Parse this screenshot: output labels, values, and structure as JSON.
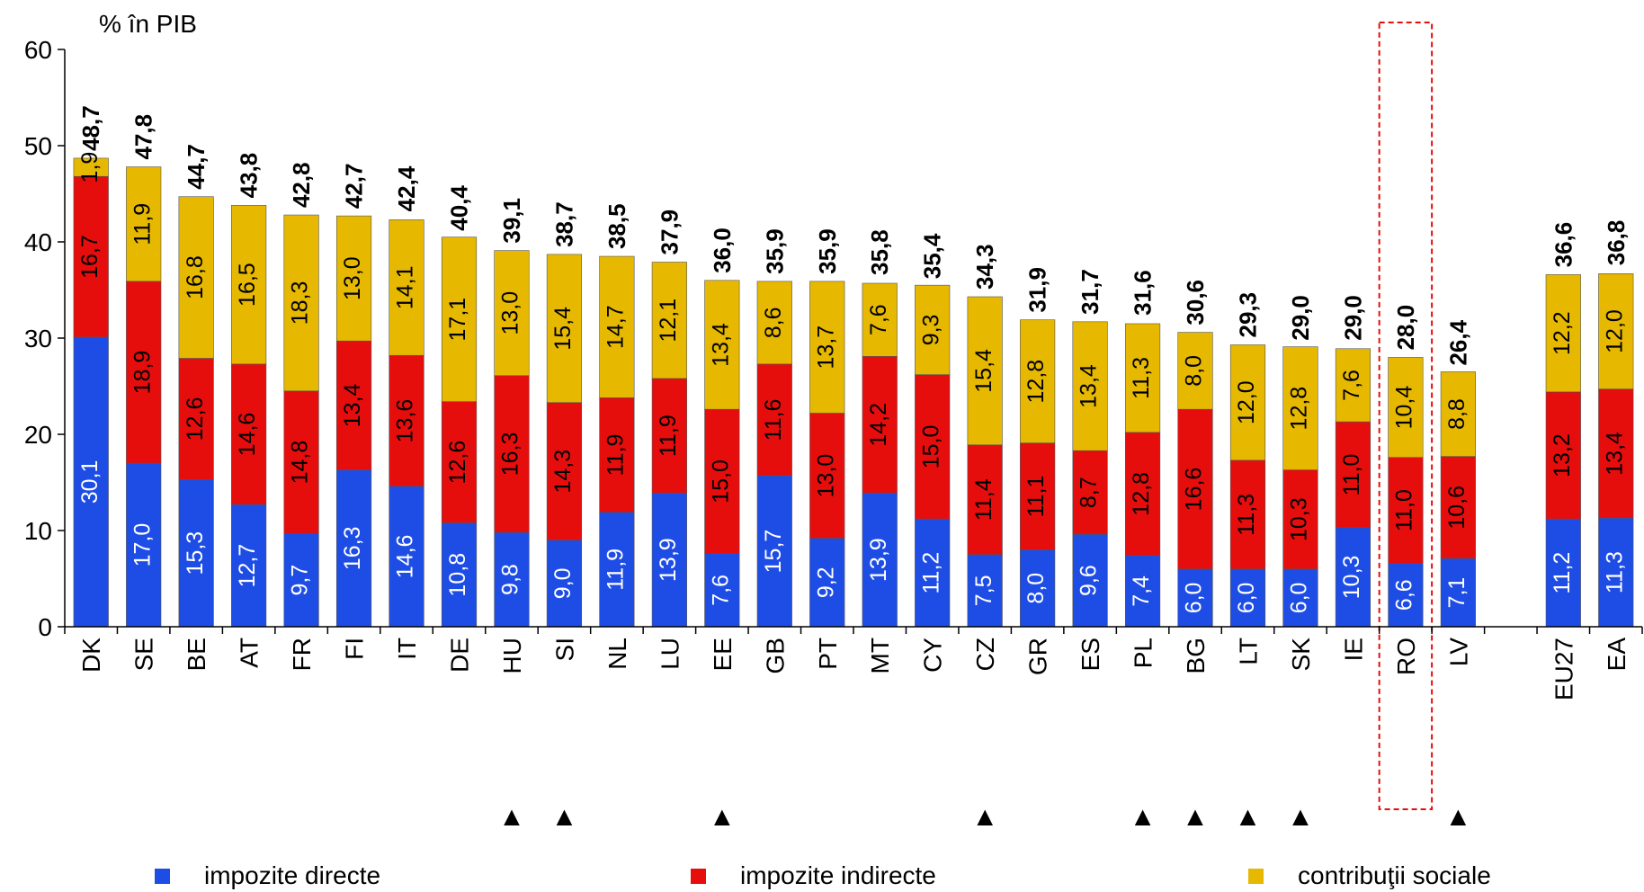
{
  "chart_data": {
    "type": "bar",
    "stacked": true,
    "ylabel": "% în PIB",
    "ylim": [
      0,
      60
    ],
    "yticks": [
      0,
      10,
      20,
      30,
      40,
      50,
      60
    ],
    "grid": false,
    "legend_position": "bottom",
    "categories": [
      "DK",
      "SE",
      "BE",
      "AT",
      "FR",
      "FI",
      "IT",
      "DE",
      "HU",
      "SI",
      "NL",
      "LU",
      "EE",
      "GB",
      "PT",
      "MT",
      "CY",
      "CZ",
      "GR",
      "ES",
      "PL",
      "BG",
      "LT",
      "SK",
      "IE",
      "RO",
      "LV",
      "",
      "EU27",
      "EA"
    ],
    "markers": [
      false,
      false,
      false,
      false,
      false,
      false,
      false,
      false,
      true,
      true,
      false,
      false,
      true,
      false,
      false,
      false,
      false,
      true,
      false,
      false,
      true,
      true,
      true,
      true,
      false,
      false,
      true,
      false,
      false,
      false
    ],
    "marker_symbol": "▲",
    "highlighted_category": "RO",
    "series": [
      {
        "name": "impozite directe",
        "color": "#1e4de6",
        "values": [
          30.1,
          17.0,
          15.3,
          12.7,
          9.7,
          16.3,
          14.6,
          10.8,
          9.8,
          9.0,
          11.9,
          13.9,
          7.6,
          15.7,
          9.2,
          13.9,
          11.2,
          7.5,
          8.0,
          9.6,
          7.4,
          6.0,
          6.0,
          6.0,
          10.3,
          6.6,
          7.1,
          null,
          11.2,
          11.3
        ],
        "labels": [
          "30,1",
          "17,0",
          "15,3",
          "12,7",
          "9,7",
          "16,3",
          "14,6",
          "10,8",
          "9,8",
          "9,0",
          "11,9",
          "13,9",
          "7,6",
          "15,7",
          "9,2",
          "13,9",
          "11,2",
          "7,5",
          "8,0",
          "9,6",
          "7,4",
          "6,0",
          "6,0",
          "6,0",
          "10,3",
          "6,6",
          "7,1",
          "",
          "11,2",
          "11,3"
        ]
      },
      {
        "name": "impozite indirecte",
        "color": "#e60d0d",
        "values": [
          16.7,
          18.9,
          12.6,
          14.6,
          14.8,
          13.4,
          13.6,
          12.6,
          16.3,
          14.3,
          11.9,
          11.9,
          15.0,
          11.6,
          13.0,
          14.2,
          15.0,
          11.4,
          11.1,
          8.7,
          12.8,
          16.6,
          11.3,
          10.3,
          11.0,
          11.0,
          10.6,
          null,
          13.2,
          13.4
        ],
        "labels": [
          "16,7",
          "18,9",
          "12,6",
          "14,6",
          "14,8",
          "13,4",
          "13,6",
          "12,6",
          "16,3",
          "14,3",
          "11,9",
          "11,9",
          "15,0",
          "11,6",
          "13,0",
          "14,2",
          "15,0",
          "11,4",
          "11,1",
          "8,7",
          "12,8",
          "16,6",
          "11,3",
          "10,3",
          "11,0",
          "11,0",
          "10,6",
          "",
          "13,2",
          "13,4"
        ]
      },
      {
        "name": "contribuţii sociale",
        "color": "#e6b800",
        "values": [
          1.9,
          11.9,
          16.8,
          16.5,
          18.3,
          13.0,
          14.1,
          17.1,
          13.0,
          15.4,
          14.7,
          12.1,
          13.4,
          8.6,
          13.7,
          7.6,
          9.3,
          15.4,
          12.8,
          13.4,
          11.3,
          8.0,
          12.0,
          12.8,
          7.6,
          10.4,
          8.8,
          null,
          12.2,
          12.0
        ],
        "labels": [
          "1,9",
          "11,9",
          "16,8",
          "16,5",
          "18,3",
          "13,0",
          "14,1",
          "17,1",
          "13,0",
          "15,4",
          "14,7",
          "12,1",
          "13,4",
          "8,6",
          "13,7",
          "7,6",
          "9,3",
          "15,4",
          "12,8",
          "13,4",
          "11,3",
          "8,0",
          "12,0",
          "12,8",
          "7,6",
          "10,4",
          "8,8",
          "",
          "12,2",
          "12,0"
        ]
      }
    ],
    "totals": [
      48.7,
      47.8,
      44.7,
      43.8,
      42.8,
      42.7,
      42.4,
      40.4,
      39.1,
      38.7,
      38.5,
      37.9,
      36.0,
      35.9,
      35.9,
      35.8,
      35.4,
      34.3,
      31.9,
      31.7,
      31.6,
      30.6,
      29.3,
      29.0,
      29.0,
      28.0,
      26.4,
      null,
      36.6,
      36.8
    ],
    "total_labels": [
      "48,7",
      "47,8",
      "44,7",
      "43,8",
      "42,8",
      "42,7",
      "42,4",
      "40,4",
      "39,1",
      "38,7",
      "38,5",
      "37,9",
      "36,0",
      "35,9",
      "35,9",
      "35,8",
      "35,4",
      "34,3",
      "31,9",
      "31,7",
      "31,6",
      "30,6",
      "29,3",
      "29,0",
      "29,0",
      "28,0",
      "26,4",
      "",
      "36,6",
      "36,8"
    ]
  }
}
